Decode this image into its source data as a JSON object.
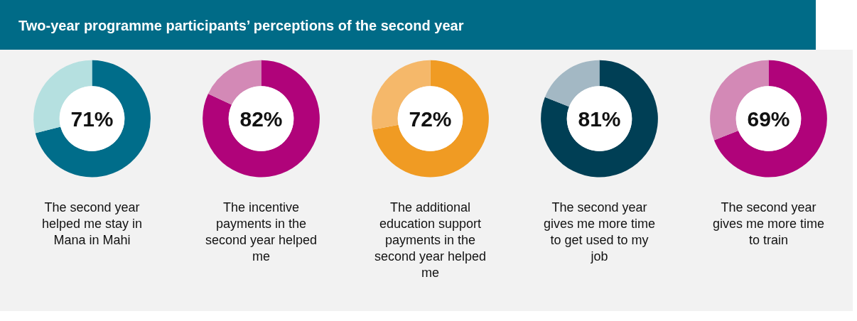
{
  "chart_data": [
    {
      "type": "donut",
      "title": "Two-year programme participants’ perceptions of the second year",
      "categories": [
        null,
        null
      ],
      "values": [
        71,
        29
      ],
      "colors": [
        "#006d8a",
        "#b5e0e0"
      ],
      "annotations": [
        "71%"
      ],
      "xlabel": "The second year helped me stay in Mana in Mahi"
    },
    {
      "type": "donut",
      "categories": [
        null,
        null
      ],
      "values": [
        82,
        18
      ],
      "colors": [
        "#b0037a",
        "#d389b6"
      ],
      "annotations": [
        "82%"
      ],
      "xlabel": "The incentive payments in the second year helped me"
    },
    {
      "type": "donut",
      "categories": [
        null,
        null
      ],
      "values": [
        72,
        28
      ],
      "colors": [
        "#f09b23",
        "#f5b86a"
      ],
      "annotations": [
        "72%"
      ],
      "xlabel": "The additional education support payments in the second year helped me"
    },
    {
      "type": "donut",
      "categories": [
        null,
        null
      ],
      "values": [
        81,
        19
      ],
      "colors": [
        "#003f55",
        "#a3b8c4"
      ],
      "annotations": [
        "81%"
      ],
      "xlabel": "The second year gives me more time to get used to my job"
    },
    {
      "type": "donut",
      "categories": [
        null,
        null
      ],
      "values": [
        69,
        31
      ],
      "colors": [
        "#b0037a",
        "#d389b6"
      ],
      "annotations": [
        "69%"
      ],
      "xlabel": "The second year gives me more time to train"
    }
  ]
}
